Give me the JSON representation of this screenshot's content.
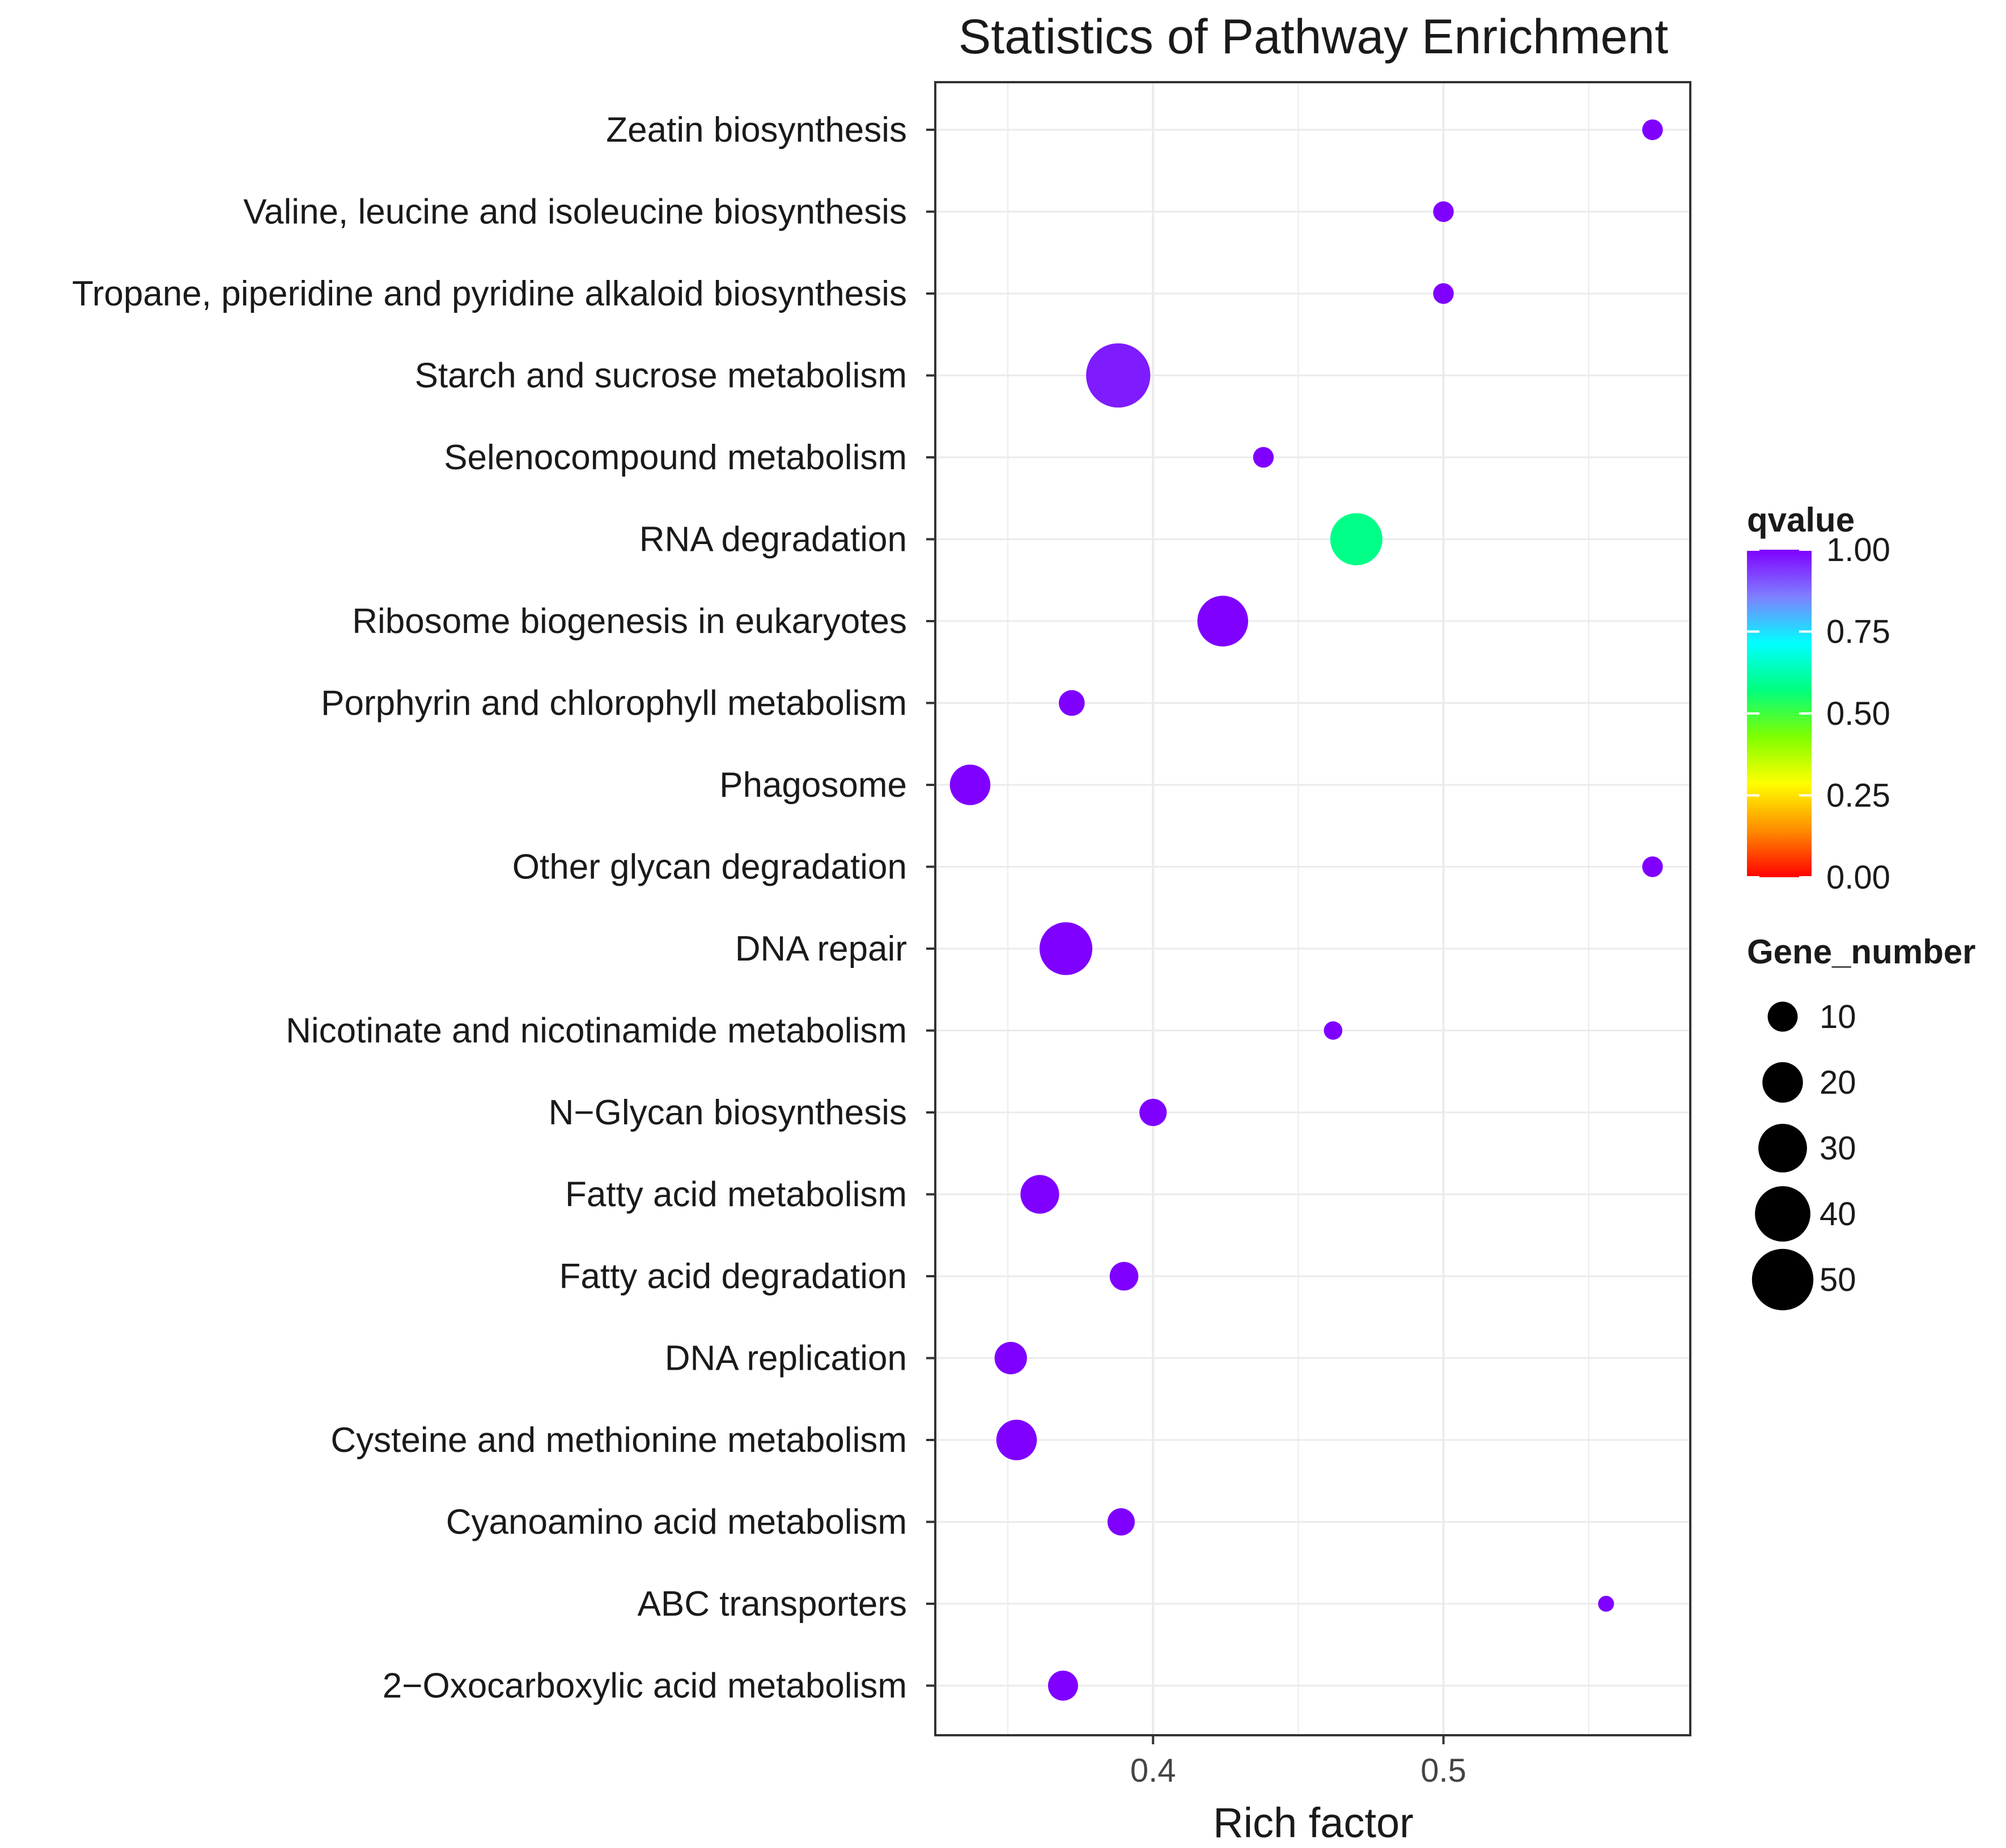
{
  "chart_data": {
    "type": "scatter",
    "title": "Statistics of Pathway Enrichment",
    "xlabel": "Rich factor",
    "ylabel": "",
    "xlim": [
      0.325,
      0.585
    ],
    "xticks": [
      0.4,
      0.5
    ],
    "xtick_labels": [
      "0.4",
      "0.5"
    ],
    "grid": true,
    "categories": [
      "Zeatin biosynthesis",
      "Valine, leucine and isoleucine biosynthesis",
      "Tropane, piperidine and pyridine alkaloid biosynthesis",
      "Starch and sucrose metabolism",
      "Selenocompound metabolism",
      "RNA degradation",
      "Ribosome biogenesis in eukaryotes",
      "Porphyrin and chlorophyll metabolism",
      "Phagosome",
      "Other glycan degradation",
      "DNA repair",
      "Nicotinate and nicotinamide metabolism",
      "N−Glycan biosynthesis",
      "Fatty acid metabolism",
      "Fatty acid degradation",
      "DNA replication",
      "Cysteine and methionine metabolism",
      "Cyanoamino acid metabolism",
      "ABC transporters",
      "2−Oxocarboxylic acid metabolism"
    ],
    "points": [
      {
        "pathway": "Zeatin biosynthesis",
        "rich_factor": 0.572,
        "gene_number": 4,
        "qvalue": 1.0
      },
      {
        "pathway": "Valine, leucine and isoleucine biosynthesis",
        "rich_factor": 0.5,
        "gene_number": 4,
        "qvalue": 1.0
      },
      {
        "pathway": "Tropane, piperidine and pyridine alkaloid biosynthesis",
        "rich_factor": 0.5,
        "gene_number": 4,
        "qvalue": 1.0
      },
      {
        "pathway": "Starch and sucrose metabolism",
        "rich_factor": 0.388,
        "gene_number": 55,
        "qvalue": 0.97
      },
      {
        "pathway": "Selenocompound metabolism",
        "rich_factor": 0.438,
        "gene_number": 4,
        "qvalue": 1.0
      },
      {
        "pathway": "RNA degradation",
        "rich_factor": 0.47,
        "gene_number": 35,
        "qvalue": 0.58
      },
      {
        "pathway": "Ribosome biogenesis in eukaryotes",
        "rich_factor": 0.424,
        "gene_number": 33,
        "qvalue": 1.0
      },
      {
        "pathway": "Porphyrin and chlorophyll metabolism",
        "rich_factor": 0.372,
        "gene_number": 7,
        "qvalue": 1.0
      },
      {
        "pathway": "Phagosome",
        "rich_factor": 0.337,
        "gene_number": 20,
        "qvalue": 1.0
      },
      {
        "pathway": "Other glycan degradation",
        "rich_factor": 0.572,
        "gene_number": 4,
        "qvalue": 1.0
      },
      {
        "pathway": "DNA repair",
        "rich_factor": 0.37,
        "gene_number": 36,
        "qvalue": 1.0
      },
      {
        "pathway": "Nicotinate and nicotinamide metabolism",
        "rich_factor": 0.462,
        "gene_number": 3,
        "qvalue": 1.0
      },
      {
        "pathway": "N−Glycan biosynthesis",
        "rich_factor": 0.4,
        "gene_number": 8,
        "qvalue": 1.0
      },
      {
        "pathway": "Fatty acid metabolism",
        "rich_factor": 0.361,
        "gene_number": 18,
        "qvalue": 1.0
      },
      {
        "pathway": "Fatty acid degradation",
        "rich_factor": 0.39,
        "gene_number": 9,
        "qvalue": 1.0
      },
      {
        "pathway": "DNA replication",
        "rich_factor": 0.351,
        "gene_number": 12,
        "qvalue": 1.0
      },
      {
        "pathway": "Cysteine and methionine metabolism",
        "rich_factor": 0.353,
        "gene_number": 20,
        "qvalue": 1.0
      },
      {
        "pathway": "Cyanoamino acid metabolism",
        "rich_factor": 0.389,
        "gene_number": 8,
        "qvalue": 1.0
      },
      {
        "pathway": "ABC transporters",
        "rich_factor": 0.556,
        "gene_number": 2,
        "qvalue": 1.0
      },
      {
        "pathway": "2−Oxocarboxylic acid metabolism",
        "rich_factor": 0.369,
        "gene_number": 10,
        "qvalue": 1.0
      }
    ],
    "legend": {
      "color_title": "qvalue",
      "color_ticks": [
        "1.00",
        "0.75",
        "0.50",
        "0.25",
        "0.00"
      ],
      "color_tick_values": [
        1.0,
        0.75,
        0.5,
        0.25,
        0.0
      ],
      "size_title": "Gene_number",
      "size_values": [
        10,
        20,
        30,
        40,
        50
      ],
      "size_labels": [
        "10",
        "20",
        "30",
        "40",
        "50"
      ],
      "placement": "right"
    },
    "colors": {
      "gradient_stops": [
        "#ff0000",
        "#ff8c00",
        "#ffff00",
        "#7fff00",
        "#00ff7f",
        "#00ffff",
        "#7f7fff",
        "#7f00ff"
      ],
      "panel_border": "#333333",
      "grid": "#ebebeb",
      "size_legend_marker": "#000000"
    }
  }
}
